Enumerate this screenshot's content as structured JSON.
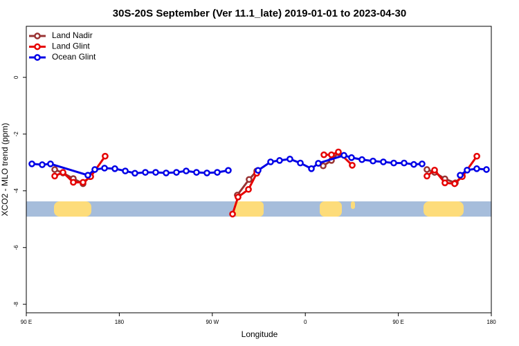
{
  "chart_data": {
    "type": "line",
    "title": "30S-20S September (Ver 11.1_late)   2019-01-01 to 2023-04-30",
    "x_label": "Longitude",
    "y_label": "XCO2 - MLO trend (ppm)",
    "xlim": [
      90,
      540
    ],
    "xticks": [
      {
        "value": 90,
        "label": "90 E"
      },
      180,
      {
        "value": 270,
        "label": "90 W"
      },
      {
        "value": 360,
        "label": "0"
      },
      {
        "value": 450,
        "label": "90 E"
      },
      180
    ],
    "ylim": [
      -8.3,
      1.8
    ],
    "yticks": [
      0,
      -2,
      -4,
      -6,
      -8
    ],
    "legend": "top-left",
    "series": [
      {
        "name": "Land Nadir",
        "color": "#993333",
        "x": [
          117.5,
          125.5,
          135.5,
          144.9,
          151.6,
          null,
          294.2,
          305.6,
          313,
          null,
          377.3,
          385.3,
          392,
          null,
          477.7,
          485.1,
          495.1,
          505.2,
          511.9
        ],
        "values": [
          -3.25,
          -3.37,
          -3.57,
          -3.75,
          -3.5,
          null,
          -4.15,
          -3.6,
          -3.3,
          null,
          -3.12,
          -2.93,
          -2.65,
          null,
          -3.25,
          -3.35,
          -3.58,
          -3.72,
          -3.47
        ]
      },
      {
        "name": "Land Glint",
        "color": "#e60000",
        "x": [
          117.5,
          125.5,
          135.5,
          144.9,
          152.3,
          166.3,
          null,
          289.6,
          294.9,
          305,
          313,
          null,
          378,
          385.3,
          392,
          405.4,
          null,
          477.7,
          485.1,
          495.1,
          504.5,
          511.9,
          526
        ],
        "values": [
          -3.48,
          -3.35,
          -3.7,
          -3.7,
          -3.5,
          -2.78,
          null,
          -4.82,
          -4.22,
          -3.95,
          -3.38,
          null,
          -2.73,
          -2.73,
          -2.63,
          -3.1,
          null,
          -3.48,
          -3.27,
          -3.72,
          -3.75,
          -3.5,
          -2.78
        ]
      },
      {
        "name": "Ocean Glint",
        "color": "#0000e6",
        "x": [
          95.4,
          105.4,
          113.4,
          149.6,
          156.3,
          165.7,
          175.7,
          185.8,
          195.1,
          205.2,
          215.2,
          225.3,
          235.3,
          244.7,
          254.7,
          264.8,
          274.8,
          285.5,
          null,
          314.3,
          326.4,
          335.1,
          345.1,
          355.2,
          365.9,
          372.6,
          397.4,
          404.7,
          414.8,
          425.5,
          435.5,
          445.6,
          455.6,
          465,
          473,
          null,
          509.9,
          516.6,
          525.9,
          535.3
        ],
        "values": [
          -3.05,
          -3.08,
          -3.05,
          -3.45,
          -3.25,
          -3.2,
          -3.22,
          -3.3,
          -3.38,
          -3.35,
          -3.35,
          -3.37,
          -3.35,
          -3.3,
          -3.35,
          -3.37,
          -3.35,
          -3.28,
          null,
          -3.28,
          -2.98,
          -2.93,
          -2.88,
          -3.02,
          -3.22,
          -3.03,
          -2.75,
          -2.83,
          -2.9,
          -2.95,
          -2.98,
          -3.02,
          -3.02,
          -3.07,
          -3.05,
          null,
          -3.45,
          -3.27,
          -3.22,
          -3.25
        ]
      }
    ]
  }
}
